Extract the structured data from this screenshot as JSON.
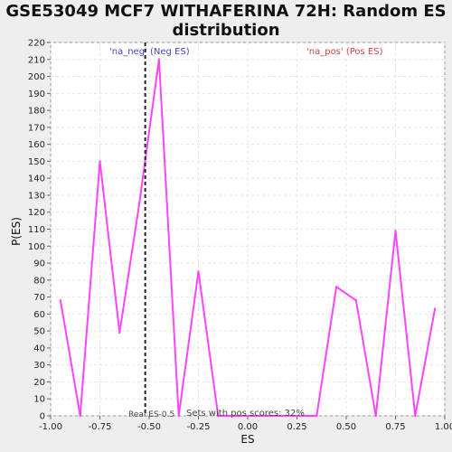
{
  "title": "GSE53049 MCF7 WITHAFERINA 72H: Random ES distribution",
  "chart_data": {
    "type": "line",
    "title": "GSE53049 MCF7 WITHAFERINA 72H: Random ES distribution",
    "xlabel": "ES",
    "ylabel": "P(ES)",
    "xlim": [
      -1.0,
      1.0
    ],
    "ylim": [
      0,
      220
    ],
    "xticks": [
      -1.0,
      -0.75,
      -0.5,
      -0.25,
      0.0,
      0.25,
      0.5,
      0.75,
      1.0
    ],
    "xtick_labels": [
      "-1.00",
      "-0.75",
      "-0.50",
      "-0.25",
      "0.00",
      "0.25",
      "0.50",
      "0.75",
      "1.00"
    ],
    "yticks": [
      0,
      10,
      20,
      30,
      40,
      50,
      60,
      70,
      80,
      90,
      100,
      110,
      120,
      130,
      140,
      150,
      160,
      170,
      180,
      190,
      200,
      210,
      220
    ],
    "grid": true,
    "line_color": "#ff44ff",
    "series": [
      {
        "x": [
          -0.95,
          -0.85,
          -0.75,
          -0.65,
          -0.55,
          -0.45,
          -0.35,
          -0.25,
          -0.15,
          -0.05,
          0.05,
          0.15,
          0.25,
          0.35,
          0.45,
          0.55,
          0.65,
          0.75,
          0.85,
          0.95
        ],
        "y": [
          68,
          0,
          150,
          49,
          125,
          210,
          0,
          85,
          0,
          0,
          0,
          0,
          0,
          0,
          76,
          68,
          0,
          109,
          0,
          63
        ]
      }
    ],
    "real_es": -0.52,
    "annotations": {
      "neg_label": "'na_neg' (Neg ES)",
      "pos_label": "'na_pos' (Pos ES)",
      "real_es_label": "Real ES-0.5",
      "sets_label": "Sets with pos scores: 32%"
    },
    "colors": {
      "neg_label": "#4444cc",
      "pos_label": "#cc4444",
      "real_es_line": "#222222"
    }
  }
}
